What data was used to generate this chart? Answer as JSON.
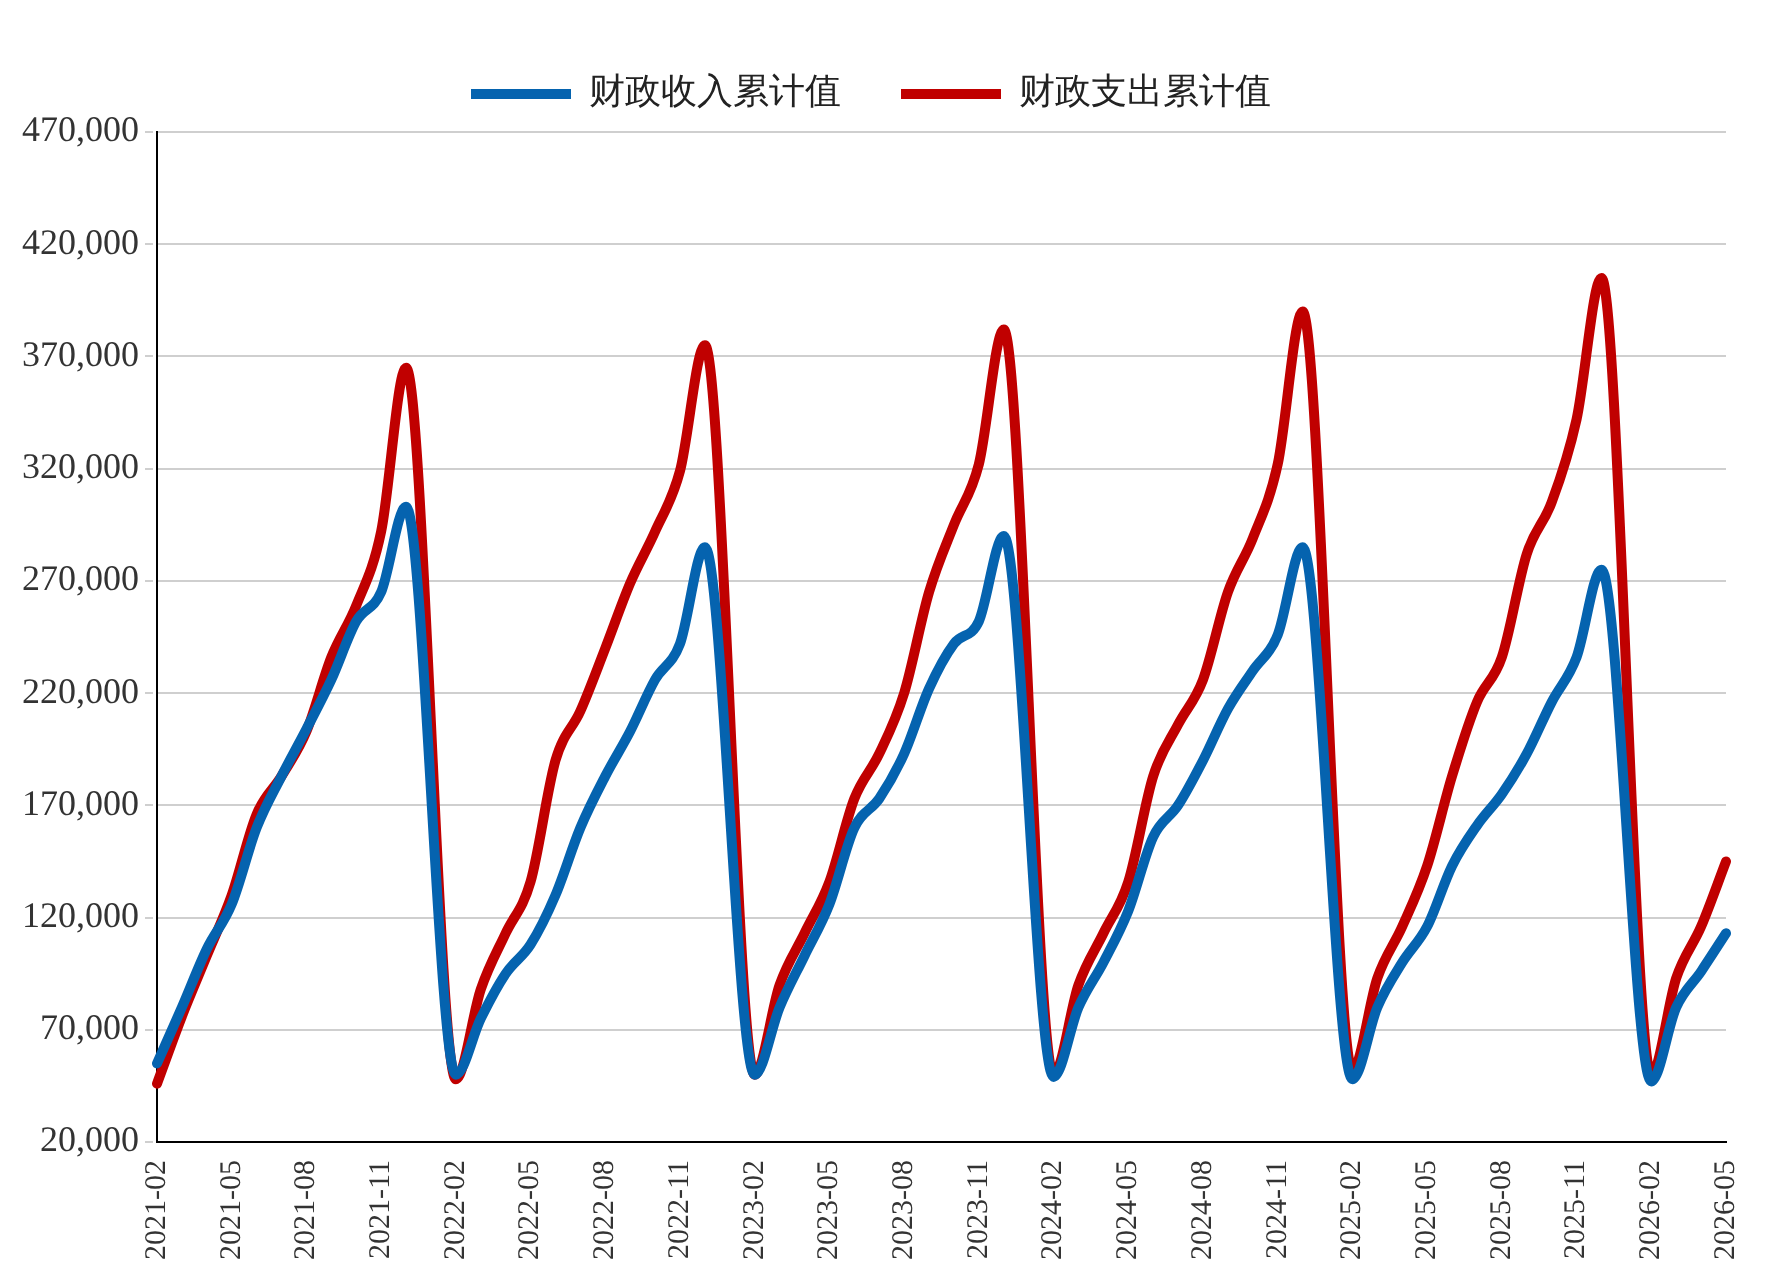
{
  "chart_data": {
    "type": "line",
    "categories": [
      "2021-02",
      null,
      null,
      "2021-05",
      null,
      null,
      "2021-08",
      null,
      null,
      "2021-11",
      null,
      null,
      "2022-02",
      null,
      null,
      "2022-05",
      null,
      null,
      "2022-08",
      null,
      null,
      "2022-11",
      null,
      null,
      "2023-02",
      null,
      null,
      "2023-05",
      null,
      null,
      "2023-08",
      null,
      null,
      "2023-11",
      null,
      null,
      "2024-02",
      null,
      null,
      "2024-05",
      null,
      null,
      "2024-08",
      null,
      null,
      "2024-11",
      null,
      null,
      "2025-02",
      null,
      null,
      "2025-05",
      null,
      null,
      "2025-08",
      null,
      null,
      "2025-11",
      null,
      null,
      "2026-02",
      null,
      null,
      "2026-05"
    ],
    "series": [
      {
        "name": "财政收入累计值",
        "color": "#0563af",
        "values": [
          55000,
          80000,
          106000,
          126000,
          160000,
          183000,
          204000,
          226000,
          252000,
          265000,
          303000,
          null,
          50000,
          75000,
          95000,
          108000,
          130000,
          160000,
          183000,
          203000,
          226000,
          242000,
          285000,
          null,
          50000,
          80000,
          103000,
          126000,
          160000,
          173000,
          193000,
          222000,
          242000,
          252000,
          290000,
          null,
          49000,
          80000,
          100000,
          123000,
          156000,
          170000,
          190000,
          213000,
          230000,
          246000,
          285000,
          null,
          48000,
          80000,
          100000,
          116000,
          143000,
          161000,
          175000,
          193000,
          216000,
          236000,
          275000,
          null,
          47000,
          80000,
          96000,
          113000
        ]
      },
      {
        "name": "财政支出累计值",
        "color": "#c00000",
        "values": [
          46000,
          76000,
          103000,
          130000,
          166000,
          183000,
          203000,
          236000,
          259000,
          292000,
          365000,
          null,
          48000,
          88000,
          113000,
          136000,
          190000,
          212000,
          240000,
          269000,
          292000,
          319000,
          375000,
          null,
          50000,
          90000,
          113000,
          136000,
          173000,
          193000,
          220000,
          265000,
          295000,
          322000,
          382000,
          null,
          50000,
          90000,
          113000,
          136000,
          183000,
          206000,
          226000,
          265000,
          289000,
          322000,
          390000,
          null,
          52000,
          93000,
          116000,
          143000,
          183000,
          216000,
          236000,
          282000,
          305000,
          342000,
          405000,
          null,
          50000,
          93000,
          116000,
          145000
        ]
      }
    ],
    "ylim": [
      20000,
      470000
    ],
    "yticks": [
      {
        "value": 20000,
        "label": "20,000"
      },
      {
        "value": 70000,
        "label": "70,000"
      },
      {
        "value": 120000,
        "label": "120,000"
      },
      {
        "value": 170000,
        "label": "170,000"
      },
      {
        "value": 220000,
        "label": "220,000"
      },
      {
        "value": 270000,
        "label": "270,000"
      },
      {
        "value": 320000,
        "label": "320,000"
      },
      {
        "value": 370000,
        "label": "370,000"
      },
      {
        "value": 420000,
        "label": "420,000"
      },
      {
        "value": 470000,
        "label": "470,000"
      }
    ],
    "grid": "y",
    "legend": "top",
    "marker": "none",
    "line_style": "solid"
  }
}
